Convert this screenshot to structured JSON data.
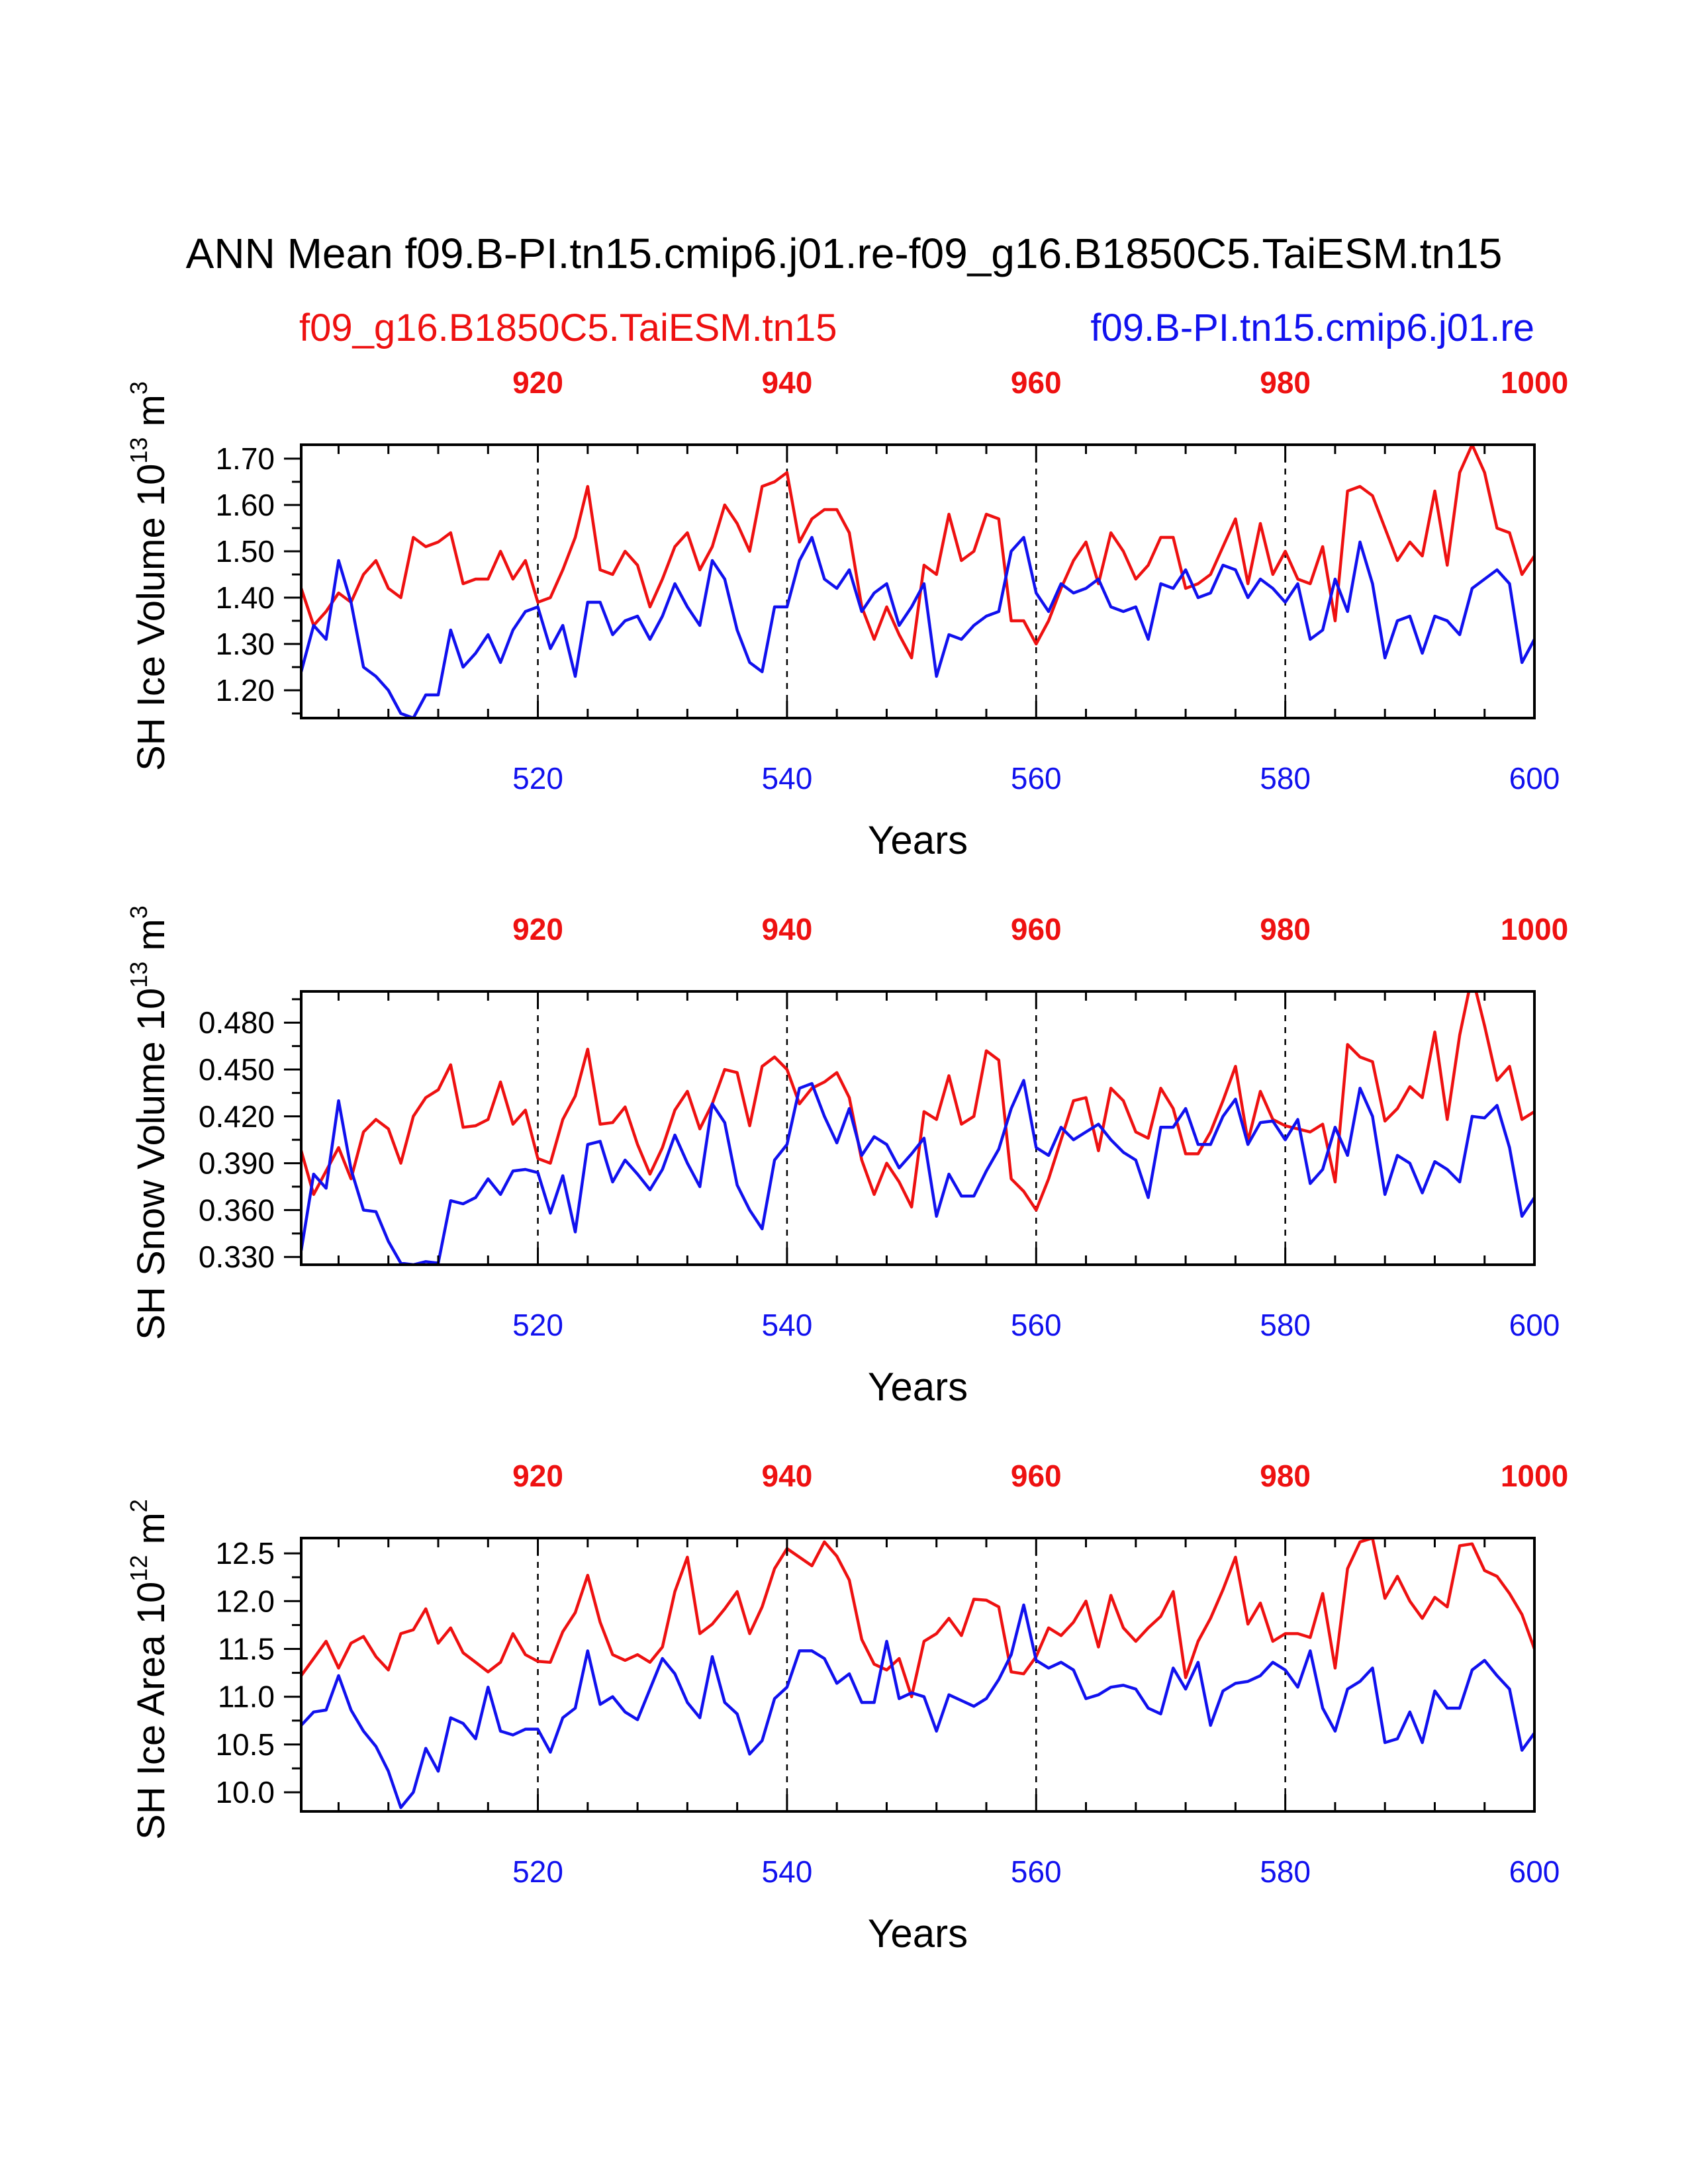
{
  "title": "ANN Mean f09.B-PI.tn15.cmip6.j01.re-f09_g16.B1850C5.TaiESM.tn15",
  "legend_red": "f09_g16.B1850C5.TaiESM.tn15",
  "legend_blue": "f09.B-PI.tn15.cmip6.j01.re",
  "colors": {
    "red": "#ee1111",
    "blue": "#1111ee",
    "axis": "#000000"
  },
  "chart_data": [
    {
      "type": "line",
      "ylabel_main": "SH Ice Volume 10",
      "ylabel_exp": "13",
      "ylabel_unit": " m",
      "ylabel_unit_exp": "3",
      "xlabel": "Years",
      "xlim_bottom": [
        501,
        600
      ],
      "xlim_top": [
        901,
        1000
      ],
      "ylim": [
        1.14,
        1.73
      ],
      "yticks": [
        1.2,
        1.3,
        1.4,
        1.5,
        1.6,
        1.7
      ],
      "ytick_labels": [
        "1.20",
        "1.30",
        "1.40",
        "1.50",
        "1.60",
        "1.70"
      ],
      "xticks_bottom": [
        "520",
        "540",
        "560",
        "580",
        "600"
      ],
      "xticks_top": [
        "920",
        "940",
        "960",
        "980",
        "1000"
      ],
      "series": [
        {
          "name": "f09_g16.B1850C5.TaiESM.tn15",
          "color": "red",
          "x_start": 901,
          "values": [
            1.42,
            1.34,
            1.37,
            1.41,
            1.39,
            1.45,
            1.48,
            1.42,
            1.4,
            1.53,
            1.51,
            1.52,
            1.54,
            1.43,
            1.44,
            1.44,
            1.5,
            1.44,
            1.48,
            1.39,
            1.4,
            1.46,
            1.53,
            1.64,
            1.46,
            1.45,
            1.5,
            1.47,
            1.38,
            1.44,
            1.51,
            1.54,
            1.46,
            1.51,
            1.6,
            1.56,
            1.5,
            1.64,
            1.65,
            1.67,
            1.52,
            1.57,
            1.59,
            1.59,
            1.54,
            1.38,
            1.31,
            1.38,
            1.32,
            1.27,
            1.47,
            1.45,
            1.58,
            1.48,
            1.5,
            1.58,
            1.57,
            1.35,
            1.35,
            1.3,
            1.35,
            1.42,
            1.48,
            1.52,
            1.43,
            1.54,
            1.5,
            1.44,
            1.47,
            1.53,
            1.53,
            1.42,
            1.43,
            1.45,
            1.51,
            1.57,
            1.43,
            1.56,
            1.45,
            1.5,
            1.44,
            1.43,
            1.51,
            1.35,
            1.63,
            1.64,
            1.62,
            1.55,
            1.48,
            1.52,
            1.49,
            1.63,
            1.47,
            1.67,
            1.73,
            1.67,
            1.55,
            1.54,
            1.45,
            1.49
          ]
        },
        {
          "name": "f09.B-PI.tn15.cmip6.j01.re",
          "color": "blue",
          "x_start": 501,
          "values": [
            1.24,
            1.34,
            1.31,
            1.48,
            1.39,
            1.25,
            1.23,
            1.2,
            1.15,
            1.14,
            1.19,
            1.19,
            1.33,
            1.25,
            1.28,
            1.32,
            1.26,
            1.33,
            1.37,
            1.38,
            1.29,
            1.34,
            1.23,
            1.39,
            1.39,
            1.32,
            1.35,
            1.36,
            1.31,
            1.36,
            1.43,
            1.38,
            1.34,
            1.48,
            1.44,
            1.33,
            1.26,
            1.24,
            1.38,
            1.38,
            1.48,
            1.53,
            1.44,
            1.42,
            1.46,
            1.37,
            1.41,
            1.43,
            1.34,
            1.38,
            1.43,
            1.23,
            1.32,
            1.31,
            1.34,
            1.36,
            1.37,
            1.5,
            1.53,
            1.41,
            1.37,
            1.43,
            1.41,
            1.42,
            1.44,
            1.38,
            1.37,
            1.38,
            1.31,
            1.43,
            1.42,
            1.46,
            1.4,
            1.41,
            1.47,
            1.46,
            1.4,
            1.44,
            1.42,
            1.39,
            1.43,
            1.31,
            1.33,
            1.44,
            1.37,
            1.52,
            1.43,
            1.27,
            1.35,
            1.36,
            1.28,
            1.36,
            1.35,
            1.32,
            1.42,
            1.44,
            1.46,
            1.43,
            1.26,
            1.31
          ]
        }
      ]
    },
    {
      "type": "line",
      "ylabel_main": "SH Snow Volume 10",
      "ylabel_exp": "13",
      "ylabel_unit": " m",
      "ylabel_unit_exp": "3",
      "xlabel": "Years",
      "xlim_bottom": [
        501,
        600
      ],
      "xlim_top": [
        901,
        1000
      ],
      "ylim": [
        0.325,
        0.5
      ],
      "yticks": [
        0.33,
        0.36,
        0.39,
        0.42,
        0.45,
        0.48
      ],
      "ytick_labels": [
        "0.330",
        "0.360",
        "0.390",
        "0.420",
        "0.450",
        "0.480"
      ],
      "xticks_bottom": [
        "520",
        "540",
        "560",
        "580",
        "600"
      ],
      "xticks_top": [
        "920",
        "940",
        "960",
        "980",
        "1000"
      ],
      "series": [
        {
          "name": "f09_g16.B1850C5.TaiESM.tn15",
          "color": "red",
          "x_start": 901,
          "values": [
            0.398,
            0.37,
            0.385,
            0.4,
            0.38,
            0.41,
            0.418,
            0.412,
            0.39,
            0.42,
            0.432,
            0.437,
            0.453,
            0.413,
            0.414,
            0.418,
            0.442,
            0.415,
            0.424,
            0.393,
            0.39,
            0.418,
            0.433,
            0.463,
            0.415,
            0.416,
            0.426,
            0.402,
            0.383,
            0.4,
            0.424,
            0.436,
            0.412,
            0.428,
            0.45,
            0.448,
            0.414,
            0.452,
            0.458,
            0.45,
            0.428,
            0.438,
            0.442,
            0.448,
            0.432,
            0.392,
            0.37,
            0.39,
            0.378,
            0.362,
            0.423,
            0.418,
            0.446,
            0.415,
            0.42,
            0.462,
            0.456,
            0.38,
            0.372,
            0.36,
            0.38,
            0.405,
            0.43,
            0.432,
            0.398,
            0.438,
            0.43,
            0.41,
            0.406,
            0.438,
            0.425,
            0.396,
            0.396,
            0.41,
            0.43,
            0.452,
            0.404,
            0.436,
            0.418,
            0.414,
            0.412,
            0.41,
            0.415,
            0.378,
            0.466,
            0.458,
            0.455,
            0.417,
            0.425,
            0.439,
            0.432,
            0.474,
            0.418,
            0.472,
            0.51,
            0.478,
            0.443,
            0.452,
            0.418,
            0.423
          ]
        },
        {
          "name": "f09.B-PI.tn15.cmip6.j01.re",
          "color": "blue",
          "x_start": 501,
          "values": [
            0.334,
            0.383,
            0.374,
            0.43,
            0.386,
            0.36,
            0.359,
            0.34,
            0.326,
            0.325,
            0.327,
            0.326,
            0.366,
            0.364,
            0.368,
            0.38,
            0.37,
            0.385,
            0.386,
            0.384,
            0.358,
            0.382,
            0.346,
            0.402,
            0.404,
            0.378,
            0.392,
            0.383,
            0.373,
            0.386,
            0.408,
            0.39,
            0.375,
            0.428,
            0.416,
            0.376,
            0.36,
            0.348,
            0.392,
            0.402,
            0.438,
            0.441,
            0.42,
            0.403,
            0.425,
            0.395,
            0.407,
            0.402,
            0.387,
            0.396,
            0.406,
            0.356,
            0.383,
            0.369,
            0.369,
            0.385,
            0.399,
            0.425,
            0.443,
            0.4,
            0.395,
            0.413,
            0.405,
            0.41,
            0.415,
            0.405,
            0.397,
            0.392,
            0.368,
            0.413,
            0.413,
            0.425,
            0.402,
            0.402,
            0.42,
            0.431,
            0.402,
            0.416,
            0.417,
            0.405,
            0.418,
            0.377,
            0.386,
            0.413,
            0.395,
            0.438,
            0.42,
            0.37,
            0.395,
            0.39,
            0.371,
            0.391,
            0.386,
            0.378,
            0.42,
            0.419,
            0.427,
            0.4,
            0.356,
            0.368
          ]
        }
      ]
    },
    {
      "type": "line",
      "ylabel_main": "SH Ice Area 10",
      "ylabel_exp": "12",
      "ylabel_unit": " m",
      "ylabel_unit_exp": "2",
      "xlabel": "Years",
      "xlim_bottom": [
        501,
        600
      ],
      "xlim_top": [
        901,
        1000
      ],
      "ylim": [
        9.8,
        12.66
      ],
      "yticks": [
        10.0,
        10.5,
        11.0,
        11.5,
        12.0,
        12.5
      ],
      "ytick_labels": [
        "10.0",
        "10.5",
        "11.0",
        "11.5",
        "12.0",
        "12.5"
      ],
      "xticks_bottom": [
        "520",
        "540",
        "560",
        "580",
        "600"
      ],
      "xticks_top": [
        "920",
        "940",
        "960",
        "980",
        "1000"
      ],
      "series": [
        {
          "name": "f09_g16.B1850C5.TaiESM.tn15",
          "color": "red",
          "x_start": 901,
          "values": [
            11.22,
            11.4,
            11.58,
            11.3,
            11.56,
            11.63,
            11.42,
            11.28,
            11.66,
            11.7,
            11.92,
            11.56,
            11.72,
            11.46,
            11.36,
            11.26,
            11.36,
            11.66,
            11.44,
            11.37,
            11.36,
            11.68,
            11.88,
            12.27,
            11.78,
            11.44,
            11.38,
            11.44,
            11.36,
            11.52,
            12.1,
            12.46,
            11.66,
            11.76,
            11.92,
            12.1,
            11.66,
            11.94,
            12.34,
            12.55,
            12.46,
            12.37,
            12.62,
            12.47,
            12.22,
            11.6,
            11.34,
            11.28,
            11.4,
            11.0,
            11.58,
            11.66,
            11.82,
            11.64,
            12.02,
            12.01,
            11.94,
            11.26,
            11.24,
            11.42,
            11.72,
            11.64,
            11.78,
            12.0,
            11.52,
            12.06,
            11.72,
            11.58,
            11.72,
            11.84,
            12.1,
            11.2,
            11.58,
            11.82,
            12.12,
            12.46,
            11.76,
            11.98,
            11.58,
            11.66,
            11.66,
            11.62,
            12.08,
            11.3,
            12.34,
            12.62,
            12.66,
            12.03,
            12.26,
            12.0,
            11.82,
            12.04,
            11.94,
            12.58,
            12.6,
            12.32,
            12.26,
            12.08,
            11.86,
            11.5
          ]
        },
        {
          "name": "f09.B-PI.tn15.cmip6.j01.re",
          "color": "blue",
          "x_start": 501,
          "values": [
            10.7,
            10.84,
            10.86,
            11.22,
            10.86,
            10.64,
            10.48,
            10.22,
            9.84,
            10.0,
            10.46,
            10.22,
            10.78,
            10.72,
            10.56,
            11.1,
            10.64,
            10.6,
            10.66,
            10.66,
            10.42,
            10.78,
            10.88,
            11.48,
            10.92,
            11.0,
            10.84,
            10.76,
            11.08,
            11.4,
            11.24,
            10.94,
            10.78,
            11.42,
            10.94,
            10.82,
            10.4,
            10.54,
            10.98,
            11.1,
            11.48,
            11.48,
            11.4,
            11.14,
            11.24,
            10.94,
            10.94,
            11.58,
            10.98,
            11.04,
            11.0,
            10.64,
            11.02,
            10.96,
            10.9,
            10.98,
            11.18,
            11.44,
            11.96,
            11.38,
            11.3,
            11.36,
            11.28,
            10.98,
            11.02,
            11.1,
            11.12,
            11.08,
            10.88,
            10.82,
            11.3,
            11.08,
            11.36,
            10.7,
            11.06,
            11.14,
            11.16,
            11.22,
            11.36,
            11.28,
            11.1,
            11.48,
            10.88,
            10.64,
            11.08,
            11.16,
            11.3,
            10.52,
            10.56,
            10.84,
            10.52,
            11.06,
            10.88,
            10.88,
            11.28,
            11.38,
            11.22,
            11.08,
            10.44,
            10.62
          ]
        }
      ]
    }
  ]
}
